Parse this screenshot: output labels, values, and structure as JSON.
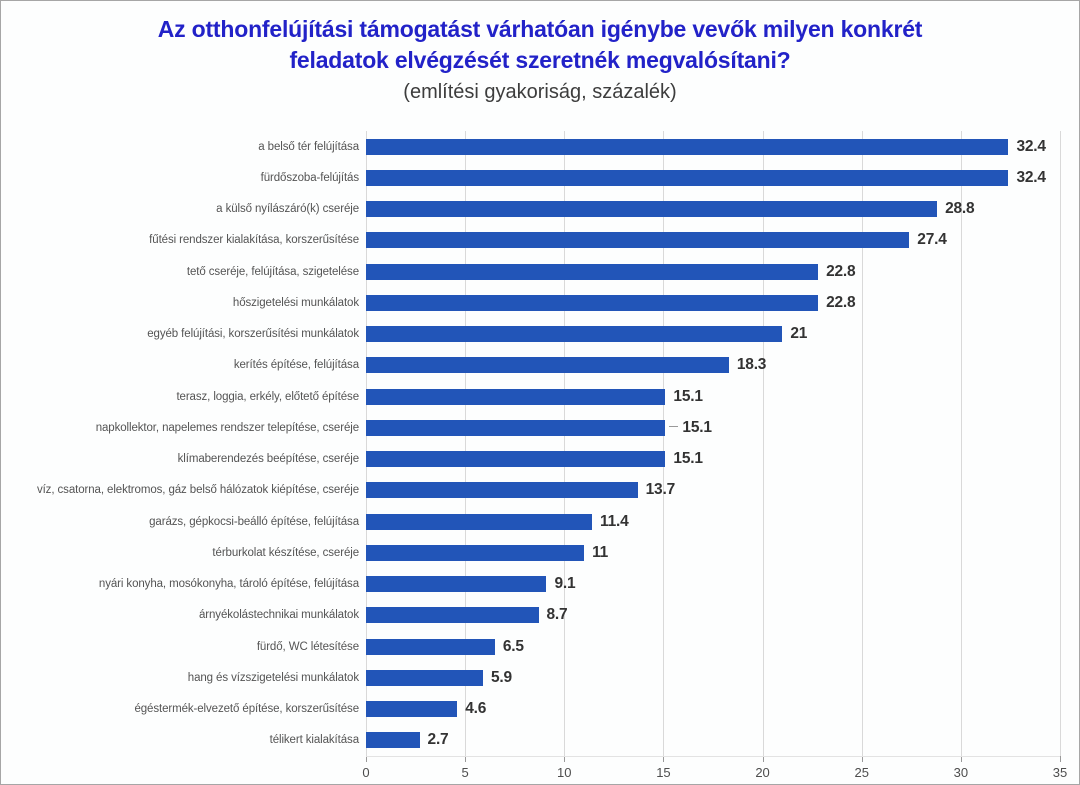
{
  "page": {
    "background": "#fdfefe",
    "border_color": "#a6a6a6"
  },
  "title": {
    "lines": [
      "Az otthonfelújítási támogatást várhatóan igénybe vevők milyen konkrét",
      "feladatok elvégzését szeretnék megvalósítani?"
    ],
    "color": "#2222c8"
  },
  "subtitle": {
    "text": "(említési gyakoriság, százalék)",
    "color": "#3d3d3d"
  },
  "chart_data": {
    "type": "bar",
    "orientation": "horizontal",
    "title": "Az otthonfelújítási támogatást várhatóan igénybe vevők milyen konkrét feladatok elvégzését szeretnék megvalósítani?",
    "subtitle": "(említési gyakoriság, százalék)",
    "categories": [
      "a belső tér felújítása",
      "fürdőszoba-felújítás",
      "a külső nyílászáró(k) cseréje",
      "fűtési rendszer kialakítása, korszerűsítése",
      "tető cseréje, felújítása, szigetelése",
      "hőszigetelési munkálatok",
      "egyéb felújítási, korszerűsítési munkálatok",
      "kerítés építése, felújítása",
      "terasz, loggia, erkély, előtető építése",
      "napkollektor, napelemes rendszer telepítése, cseréje",
      "klímaberendezés beépítése, cseréje",
      "víz, csatorna, elektromos, gáz belső hálózatok kiépítése, cseréje",
      "garázs, gépkocsi-beálló építése, felújítása",
      "térburkolat készítése, cseréje",
      "nyári konyha, mosókonyha, tároló építése, felújítása",
      "árnyékolástechnikai munkálatok",
      "fürdő, WC létesítése",
      "hang és vízszigetelési munkálatok",
      "égéstermék-elvezető építése, korszerűsítése",
      "télikert kialakítása"
    ],
    "values": [
      32.4,
      32.4,
      28.8,
      27.4,
      22.8,
      22.8,
      21,
      18.3,
      15.1,
      15.1,
      15.1,
      13.7,
      11.4,
      11,
      9.1,
      8.7,
      6.5,
      5.9,
      4.6,
      2.7
    ],
    "value_labels": [
      "32.4",
      "32.4",
      "28.8",
      "27.4",
      "22.8",
      "22.8",
      "21",
      "18.3",
      "15.1",
      "15.1",
      "15.1",
      "13.7",
      "11.4",
      "11",
      "9.1",
      "8.7",
      "6.5",
      "5.9",
      "4.6",
      "2.7"
    ],
    "xlabel": "",
    "ylabel": "",
    "xlim": [
      0,
      35
    ],
    "x_ticks": [
      0,
      5,
      10,
      15,
      20,
      25,
      30,
      35
    ],
    "grid": "vertical",
    "legend": "none",
    "leader_line_rows": [
      9
    ],
    "bar_color": "#2255b8",
    "category_label_color": "#545454",
    "value_label_color": "#333333",
    "tick_label_color": "#4d4d4d",
    "gridline_color": "#d9d9d9",
    "tick_mark_color": "#9a9a9a",
    "leader_line_color": "#9a9a9a"
  }
}
